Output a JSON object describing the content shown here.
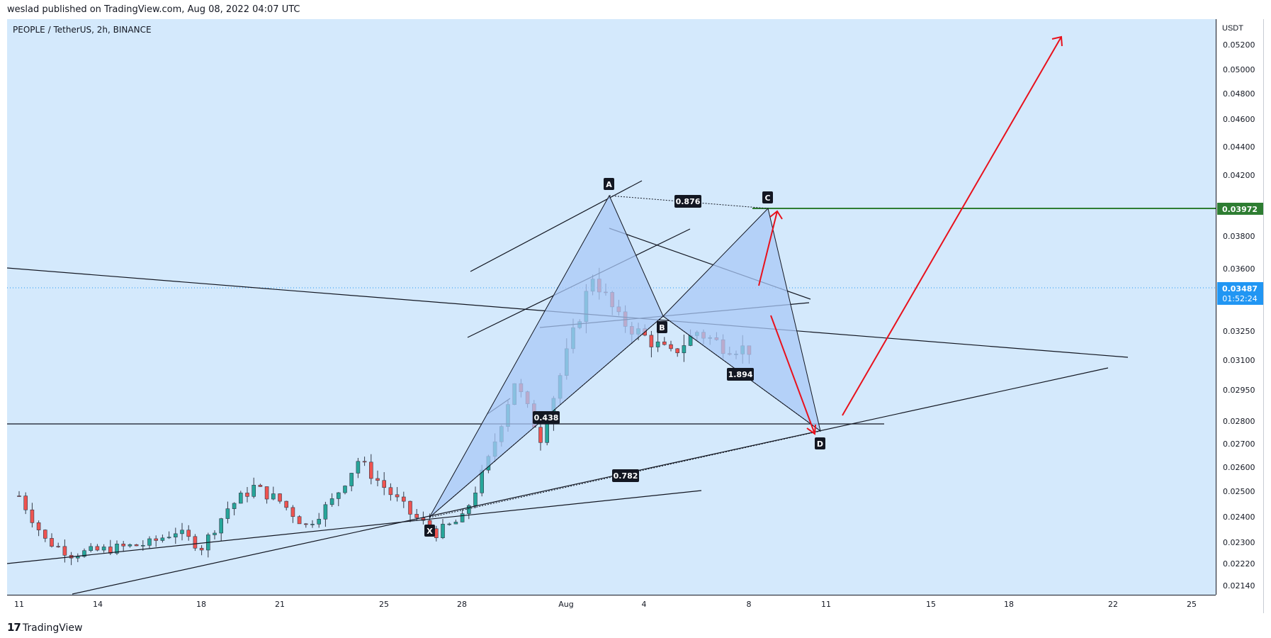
{
  "header": {
    "published_text": "weslad published on TradingView.com, Aug 08, 2022 04:07 UTC"
  },
  "symbol": {
    "title": "PEOPLE / TetherUS, 2h, BINANCE"
  },
  "price_scale": {
    "currency": "USDT",
    "ticks": [
      "0.05200",
      "0.05000",
      "0.04800",
      "0.04600",
      "0.04400",
      "0.04200",
      "0.03800",
      "0.03600",
      "0.03250",
      "0.03100",
      "0.02950",
      "0.02800",
      "0.02700",
      "0.02600",
      "0.02500",
      "0.02400",
      "0.02300",
      "0.02220",
      "0.02140"
    ],
    "marker_level": "0.03972",
    "current_price": "0.03487",
    "countdown": "01:52:24"
  },
  "time_scale": {
    "ticks": [
      "11",
      "14",
      "18",
      "21",
      "25",
      "28",
      "Aug",
      "4",
      "8",
      "11",
      "15",
      "18",
      "22",
      "25"
    ]
  },
  "pattern": {
    "points": [
      "X",
      "A",
      "B",
      "C",
      "D"
    ],
    "ratios": [
      "0.876",
      "0.438",
      "1.894",
      "0.782"
    ]
  },
  "colors": {
    "background": "#d4e9fc",
    "up": "#26a69a",
    "down": "#ef5350",
    "pattern_fill": "#a9c8f7",
    "arrows": "#e8111c",
    "level": "#2e7d32",
    "current_price": "#2196f3"
  },
  "footer": {
    "brand": "TradingView",
    "mark": "17"
  },
  "chart_data": {
    "type": "candlestick",
    "title": "PEOPLE / TetherUS, 2h, BINANCE",
    "y_unit": "USDT",
    "ylim": [
      0.0209,
      0.0535
    ],
    "x_ticks": [
      "11",
      "14",
      "18",
      "21",
      "25",
      "28",
      "Aug",
      "4",
      "8",
      "11",
      "15",
      "18",
      "22",
      "25"
    ],
    "path": [
      [
        "Jul 11",
        0.0265
      ],
      [
        "Jul 12",
        0.024
      ],
      [
        "Jul 13",
        0.0232
      ],
      [
        "Jul 14",
        0.0234
      ],
      [
        "Jul 16",
        0.0238
      ],
      [
        "Jul 17",
        0.0245
      ],
      [
        "Jul 18",
        0.0236
      ],
      [
        "Jul 19",
        0.0258
      ],
      [
        "Jul 20",
        0.027
      ],
      [
        "Jul 21",
        0.0262
      ],
      [
        "Jul 22",
        0.0248
      ],
      [
        "Jul 23",
        0.0262
      ],
      [
        "Jul 24",
        0.0285
      ],
      [
        "Jul 25",
        0.027
      ],
      [
        "Jul 26",
        0.0255
      ],
      [
        "Jul 27",
        0.0244
      ],
      [
        "Jul 28",
        0.0252
      ],
      [
        "Jul 29",
        0.0285
      ],
      [
        "Jul 30",
        0.033
      ],
      [
        "Jul 31",
        0.0298
      ],
      [
        "Aug 1",
        0.0345
      ],
      [
        "Aug 2",
        0.039
      ],
      [
        "Aug 3",
        0.0365
      ],
      [
        "Aug 4",
        0.0355
      ],
      [
        "Aug 5",
        0.0345
      ],
      [
        "Aug 6",
        0.0358
      ],
      [
        "Aug 7",
        0.035
      ],
      [
        "Aug 8",
        0.0348
      ]
    ],
    "harmonic_points": {
      "X": 0.024,
      "A": 0.0412,
      "B": 0.0332,
      "C": 0.0401,
      "D": 0.0278
    },
    "horizontal_levels": [
      0.0397,
      0.028
    ],
    "current_price": 0.03487
  }
}
